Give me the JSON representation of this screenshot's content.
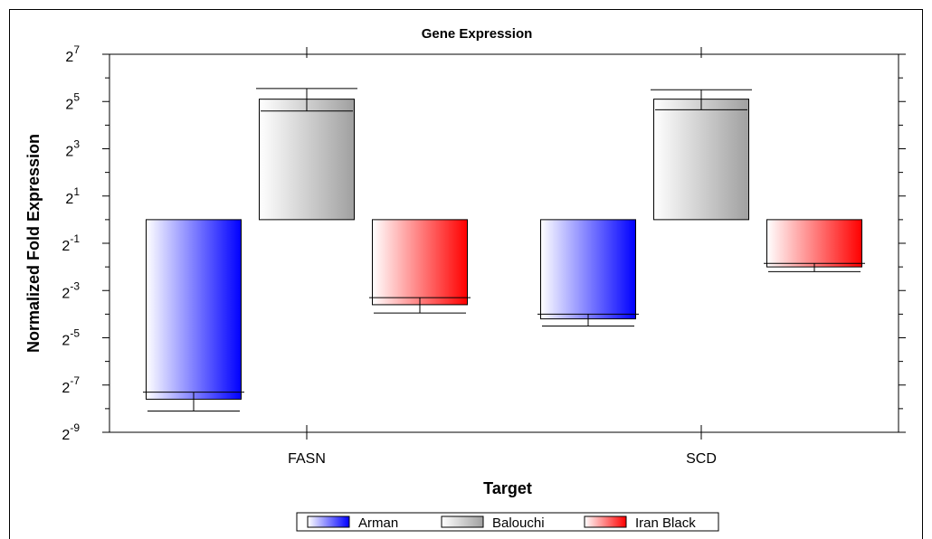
{
  "chart_data": {
    "type": "bar",
    "title": "Gene Expression",
    "xlabel": "Target",
    "ylabel": "Normalized Fold Expression",
    "y_scale": "log2",
    "ylim_exponent": [
      -9,
      7
    ],
    "ytick_exponents": [
      -9,
      -7,
      -5,
      -3,
      -1,
      1,
      3,
      5,
      7
    ],
    "categories": [
      "FASN",
      "SCD"
    ],
    "legend_position": "bottom",
    "grid": false,
    "series": [
      {
        "name": "Arman",
        "color": "#0000ff",
        "log2_values": [
          -7.6,
          -4.2
        ],
        "error_low": [
          -8.1,
          -4.5
        ],
        "error_high": [
          -7.3,
          -4.0
        ]
      },
      {
        "name": "Balouchi",
        "color": "#a0a0a0",
        "log2_values": [
          5.1,
          5.1
        ],
        "error_low": [
          4.6,
          4.65
        ],
        "error_high": [
          5.55,
          5.5
        ]
      },
      {
        "name": "Iran Black",
        "color": "#ff0000",
        "log2_values": [
          -3.6,
          -2.0
        ],
        "error_low": [
          -3.95,
          -2.2
        ],
        "error_high": [
          -3.3,
          -1.85
        ]
      }
    ]
  }
}
